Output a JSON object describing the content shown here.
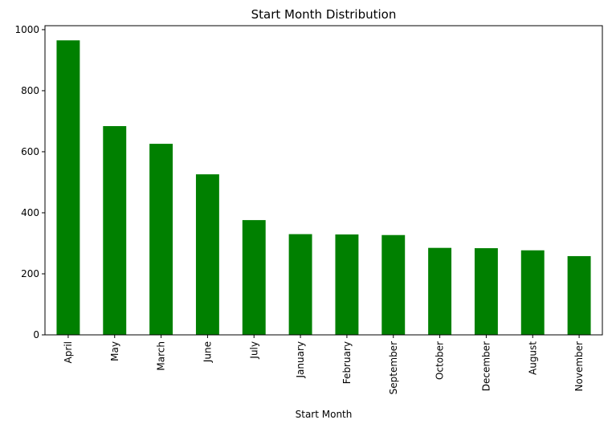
{
  "colors": {
    "bar": "#008000",
    "axis": "#000000",
    "background": "#ffffff"
  },
  "chart_data": {
    "type": "bar",
    "title": "Start Month Distribution",
    "xlabel": "Start Month",
    "ylabel": "",
    "categories": [
      "April",
      "May",
      "March",
      "June",
      "July",
      "January",
      "February",
      "September",
      "October",
      "December",
      "August",
      "November"
    ],
    "values": [
      965,
      684,
      626,
      526,
      376,
      330,
      329,
      327,
      285,
      284,
      277,
      258
    ],
    "ylim": [
      0,
      1013
    ],
    "yticks": [
      0,
      200,
      400,
      600,
      800,
      1000
    ],
    "grid": false,
    "legend": "none",
    "bar_color": "#008000"
  }
}
